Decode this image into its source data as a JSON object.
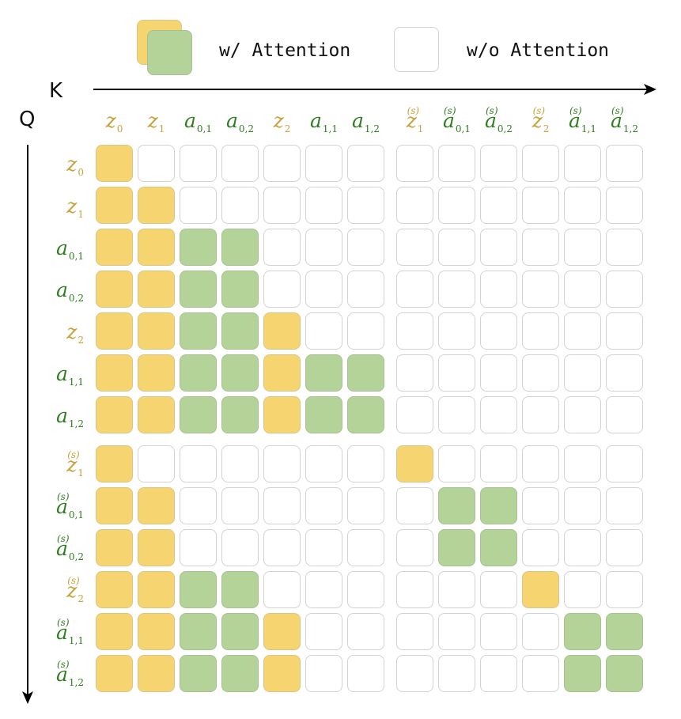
{
  "legend": {
    "with_label": "w/ Attention",
    "without_label": "w/o Attention",
    "colors": {
      "z": "#f6d570",
      "a": "#b4d398",
      "none": "#ffffff",
      "border": "#d2d2d2"
    }
  },
  "axes": {
    "x_letter": "K",
    "y_letter": "Q"
  },
  "tokens": [
    {
      "base": "z",
      "sub": "0",
      "sup": "",
      "kind": "z"
    },
    {
      "base": "z",
      "sub": "1",
      "sup": "",
      "kind": "z"
    },
    {
      "base": "a",
      "sub": "0,1",
      "sup": "",
      "kind": "a"
    },
    {
      "base": "a",
      "sub": "0,2",
      "sup": "",
      "kind": "a"
    },
    {
      "base": "z",
      "sub": "2",
      "sup": "",
      "kind": "z"
    },
    {
      "base": "a",
      "sub": "1,1",
      "sup": "",
      "kind": "a"
    },
    {
      "base": "a",
      "sub": "1,2",
      "sup": "",
      "kind": "a"
    },
    {
      "base": "z",
      "sub": "1",
      "sup": "(s)",
      "kind": "z"
    },
    {
      "base": "a",
      "sub": "0,1",
      "sup": "(s)",
      "kind": "a"
    },
    {
      "base": "a",
      "sub": "0,2",
      "sup": "(s)",
      "kind": "a"
    },
    {
      "base": "z",
      "sub": "2",
      "sup": "(s)",
      "kind": "z"
    },
    {
      "base": "a",
      "sub": "1,1",
      "sup": "(s)",
      "kind": "a"
    },
    {
      "base": "a",
      "sub": "1,2",
      "sup": "(s)",
      "kind": "a"
    }
  ],
  "label_colors": {
    "z": "#c9a13a",
    "a": "#2e7d1f"
  },
  "matrix": [
    [
      1,
      0,
      0,
      0,
      0,
      0,
      0,
      0,
      0,
      0,
      0,
      0,
      0
    ],
    [
      1,
      1,
      0,
      0,
      0,
      0,
      0,
      0,
      0,
      0,
      0,
      0,
      0
    ],
    [
      1,
      1,
      1,
      1,
      0,
      0,
      0,
      0,
      0,
      0,
      0,
      0,
      0
    ],
    [
      1,
      1,
      1,
      1,
      0,
      0,
      0,
      0,
      0,
      0,
      0,
      0,
      0
    ],
    [
      1,
      1,
      1,
      1,
      1,
      0,
      0,
      0,
      0,
      0,
      0,
      0,
      0
    ],
    [
      1,
      1,
      1,
      1,
      1,
      1,
      1,
      0,
      0,
      0,
      0,
      0,
      0
    ],
    [
      1,
      1,
      1,
      1,
      1,
      1,
      1,
      0,
      0,
      0,
      0,
      0,
      0
    ],
    [
      1,
      0,
      0,
      0,
      0,
      0,
      0,
      1,
      0,
      0,
      0,
      0,
      0
    ],
    [
      1,
      1,
      0,
      0,
      0,
      0,
      0,
      0,
      1,
      1,
      0,
      0,
      0
    ],
    [
      1,
      1,
      0,
      0,
      0,
      0,
      0,
      0,
      1,
      1,
      0,
      0,
      0
    ],
    [
      1,
      1,
      1,
      1,
      0,
      0,
      0,
      0,
      0,
      0,
      1,
      0,
      0
    ],
    [
      1,
      1,
      1,
      1,
      1,
      0,
      0,
      0,
      0,
      0,
      0,
      1,
      1
    ],
    [
      1,
      1,
      1,
      1,
      1,
      0,
      0,
      0,
      0,
      0,
      0,
      1,
      1
    ]
  ]
}
